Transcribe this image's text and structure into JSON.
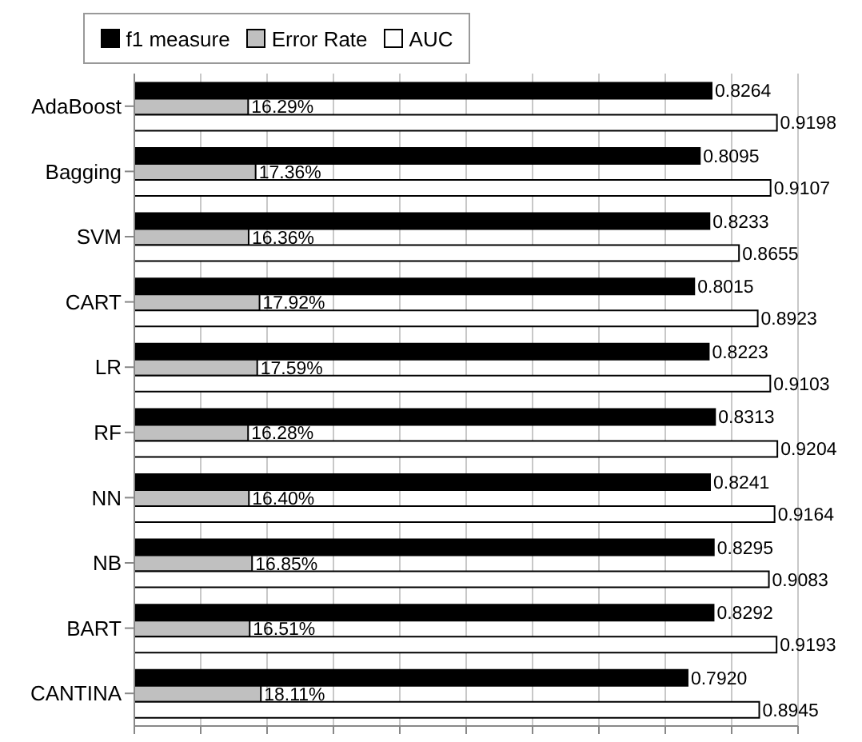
{
  "chart_data": {
    "type": "bar",
    "orientation": "horizontal",
    "categories": [
      "AdaBoost",
      "Bagging",
      "SVM",
      "CART",
      "LR",
      "RF",
      "NN",
      "NB",
      "BART",
      "CANTINA"
    ],
    "series": [
      {
        "name": "f1 measure",
        "color": "#000000",
        "values": [
          0.8264,
          0.8095,
          0.8233,
          0.8015,
          0.8223,
          0.8313,
          0.8241,
          0.8295,
          0.8292,
          0.792
        ],
        "value_labels": [
          "0.8264",
          "0.8095",
          "0.8233",
          "0.8015",
          "0.8223",
          "0.8313",
          "0.8241",
          "0.8295",
          "0.8292",
          "0.7920"
        ]
      },
      {
        "name": "Error Rate",
        "color": "#c0c0c0",
        "values": [
          0.1629,
          0.1736,
          0.1636,
          0.1792,
          0.1759,
          0.1628,
          0.164,
          0.1685,
          0.1651,
          0.1811
        ],
        "value_labels": [
          "16.29%",
          "17.36%",
          "16.36%",
          "17.92%",
          "17.59%",
          "16.28%",
          "16.40%",
          "16.85%",
          "16.51%",
          "18.11%"
        ]
      },
      {
        "name": "AUC",
        "color": "#ffffff",
        "values": [
          0.9198,
          0.9107,
          0.8655,
          0.8923,
          0.9103,
          0.9204,
          0.9164,
          0.9083,
          0.9193,
          0.8945
        ]
      }
    ],
    "tick_labels": "y",
    "grid": "x",
    "legend": "top",
    "data_labels": true
  }
}
